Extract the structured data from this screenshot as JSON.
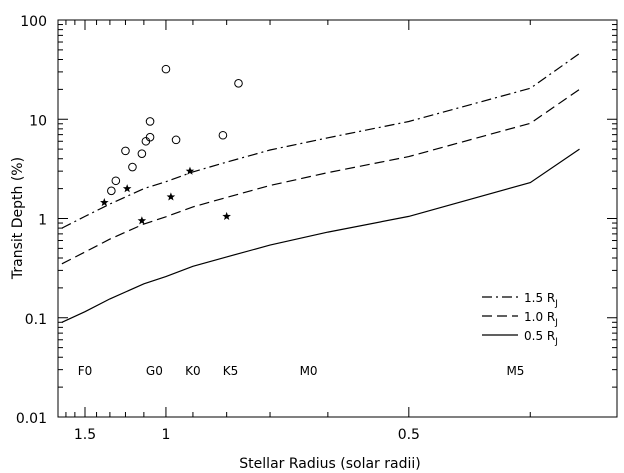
{
  "chart_data": {
    "type": "scatter",
    "xlabel": "Stellar Radius (solar radii)",
    "ylabel": "Transit Depth (%)",
    "x_scale": "reciprocal",
    "y_scale": "log",
    "xlim": [
      1.8,
      0.35
    ],
    "ylim": [
      0.01,
      100
    ],
    "x_ticks": [
      1.5,
      1,
      0.5
    ],
    "x_tick_labels": [
      "1.5",
      "1",
      "0.5"
    ],
    "y_ticks": [
      0.01,
      0.1,
      1,
      10,
      100
    ],
    "y_tick_labels": [
      "0.01",
      "0.1",
      "1",
      "10",
      "100"
    ],
    "grid": false,
    "legend_position": "lower-right",
    "spectral_types": [
      {
        "label": "F0",
        "x": 1.5
      },
      {
        "label": "G0",
        "x": 1.05
      },
      {
        "label": "K0",
        "x": 0.9
      },
      {
        "label": "K5",
        "x": 0.79
      },
      {
        "label": "M0",
        "x": 0.63
      },
      {
        "label": "M5",
        "x": 0.41
      }
    ],
    "series": [
      {
        "name": "1.5 R",
        "name_subscript": "J",
        "style": "dash-dot",
        "x": [
          1.75,
          1.5,
          1.3,
          1.1,
          1.0,
          0.9,
          0.8,
          0.7,
          0.6,
          0.5,
          0.4,
          0.37
        ],
        "y": [
          0.8,
          1.05,
          1.4,
          2.0,
          2.35,
          2.95,
          3.7,
          4.9,
          6.5,
          9.5,
          20.5,
          46
        ]
      },
      {
        "name": "1.0 R",
        "name_subscript": "J",
        "style": "dashed",
        "x": [
          1.75,
          1.5,
          1.3,
          1.1,
          1.0,
          0.9,
          0.8,
          0.7,
          0.6,
          0.5,
          0.4,
          0.37
        ],
        "y": [
          0.35,
          0.46,
          0.62,
          0.88,
          1.04,
          1.31,
          1.63,
          2.15,
          2.9,
          4.2,
          9.1,
          20
        ]
      },
      {
        "name": "0.5 R",
        "name_subscript": "J",
        "style": "solid",
        "x": [
          1.75,
          1.5,
          1.3,
          1.1,
          1.0,
          0.9,
          0.8,
          0.7,
          0.6,
          0.5,
          0.4,
          0.37
        ],
        "y": [
          0.09,
          0.115,
          0.155,
          0.22,
          0.26,
          0.33,
          0.41,
          0.54,
          0.73,
          1.05,
          2.3,
          5.0
        ]
      },
      {
        "marker": "circle",
        "x": [
          1.29,
          1.26,
          1.2,
          1.16,
          1.11,
          1.09,
          1.07,
          1.07,
          1.0,
          0.96,
          0.81,
          0.77
        ],
        "y": [
          1.9,
          2.4,
          4.8,
          3.3,
          4.5,
          6.0,
          6.6,
          9.5,
          32,
          6.2,
          6.9,
          23
        ]
      },
      {
        "marker": "star",
        "x": [
          1.34,
          1.19,
          1.11,
          0.98,
          0.91,
          0.8
        ],
        "y": [
          1.45,
          2.0,
          0.95,
          1.65,
          3.0,
          1.05
        ]
      }
    ]
  }
}
